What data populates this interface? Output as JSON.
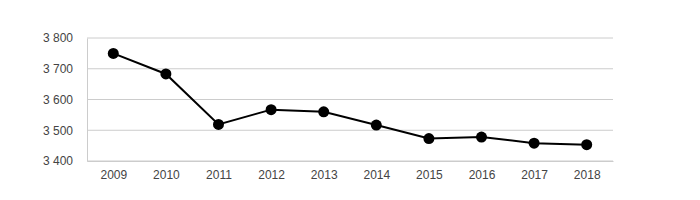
{
  "chart_data": {
    "type": "line",
    "categories": [
      "2009",
      "2010",
      "2011",
      "2012",
      "2013",
      "2014",
      "2015",
      "2016",
      "2017",
      "2018"
    ],
    "values": [
      3750,
      3683,
      3519,
      3567,
      3560,
      3517,
      3473,
      3478,
      3458,
      3453
    ],
    "color": "#000000",
    "marker": "circle",
    "ylim": [
      3400,
      3800
    ],
    "yticks": [
      {
        "value": 3400,
        "label": "3 400"
      },
      {
        "value": 3500,
        "label": "3 500"
      },
      {
        "value": 3600,
        "label": "3 600"
      },
      {
        "value": 3700,
        "label": "3 700"
      },
      {
        "value": 3800,
        "label": "3 800"
      }
    ],
    "grid": true
  }
}
